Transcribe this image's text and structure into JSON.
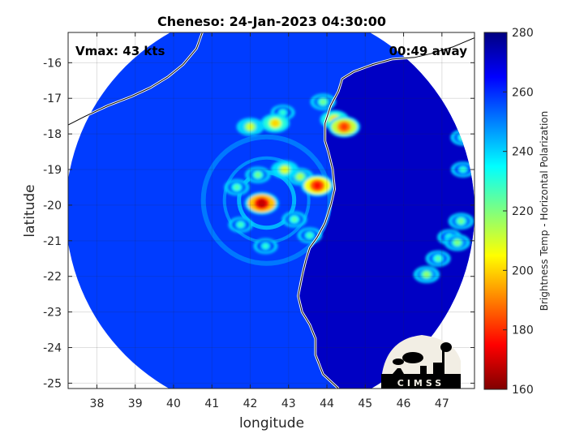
{
  "chart_data": {
    "type": "heatmap",
    "title": "Cheneso: 24-Jan-2023 04:30:00",
    "xlabel": "longitude",
    "ylabel": "latitude",
    "xlim": [
      37.25,
      47.85
    ],
    "ylim": [
      -25.15,
      -15.15
    ],
    "xticks": [
      38,
      39,
      40,
      41,
      42,
      43,
      44,
      45,
      46,
      47
    ],
    "yticks": [
      -16,
      -17,
      -18,
      -19,
      -20,
      -21,
      -22,
      -23,
      -24,
      -25
    ],
    "grid": true,
    "annotations": {
      "vmax": "Vmax: 43 kts",
      "away": "00:49 away"
    },
    "colorbar": {
      "label": "Brightness Temp - Horizontal Polarization",
      "range": [
        160,
        280
      ],
      "ticks": [
        160,
        180,
        200,
        220,
        240,
        260,
        280
      ],
      "colormap": "jet"
    },
    "swath_center": {
      "lon": 42.35,
      "lat": -20.05
    },
    "storm_center": {
      "lon": 42.3,
      "lat": -19.95
    },
    "warm_spots": [
      {
        "lon": 42.3,
        "lat": -19.95,
        "value": 168
      },
      {
        "lon": 43.75,
        "lat": -19.45,
        "value": 176
      },
      {
        "lon": 44.45,
        "lat": -17.8,
        "value": 182
      },
      {
        "lon": 44.2,
        "lat": -17.6,
        "value": 200
      },
      {
        "lon": 42.65,
        "lat": -17.7,
        "value": 200
      },
      {
        "lon": 42.0,
        "lat": -17.8,
        "value": 210
      },
      {
        "lon": 42.9,
        "lat": -19.0,
        "value": 208
      },
      {
        "lon": 43.3,
        "lat": -19.2,
        "value": 215
      },
      {
        "lon": 42.2,
        "lat": -19.15,
        "value": 222
      },
      {
        "lon": 41.65,
        "lat": -19.5,
        "value": 225
      },
      {
        "lon": 41.75,
        "lat": -20.55,
        "value": 228
      },
      {
        "lon": 42.4,
        "lat": -21.15,
        "value": 230
      },
      {
        "lon": 43.15,
        "lat": -20.4,
        "value": 225
      },
      {
        "lon": 43.55,
        "lat": -20.85,
        "value": 228
      },
      {
        "lon": 43.9,
        "lat": -17.1,
        "value": 222
      },
      {
        "lon": 46.6,
        "lat": -21.95,
        "value": 218
      },
      {
        "lon": 47.4,
        "lat": -21.05,
        "value": 220
      },
      {
        "lon": 47.5,
        "lat": -20.45,
        "value": 222
      },
      {
        "lon": 46.9,
        "lat": -21.5,
        "value": 225
      },
      {
        "lon": 47.2,
        "lat": -20.9,
        "value": 228
      },
      {
        "lon": 47.55,
        "lat": -18.1,
        "value": 225
      },
      {
        "lon": 47.55,
        "lat": -19.0,
        "value": 230
      },
      {
        "lon": 42.85,
        "lat": -17.4,
        "value": 230
      }
    ],
    "ocean_background": 258,
    "land_background": 272,
    "madagascar_coast": [
      [
        47.85,
        -15.3
      ],
      [
        47.3,
        -15.55
      ],
      [
        46.7,
        -15.75
      ],
      [
        46.3,
        -15.85
      ],
      [
        45.7,
        -15.9
      ],
      [
        45.2,
        -16.05
      ],
      [
        44.7,
        -16.25
      ],
      [
        44.4,
        -16.45
      ],
      [
        44.3,
        -16.8
      ],
      [
        44.1,
        -17.2
      ],
      [
        43.95,
        -17.7
      ],
      [
        43.95,
        -18.2
      ],
      [
        44.05,
        -18.55
      ],
      [
        44.15,
        -19.0
      ],
      [
        44.2,
        -19.55
      ],
      [
        44.1,
        -20.0
      ],
      [
        43.95,
        -20.5
      ],
      [
        43.75,
        -20.9
      ],
      [
        43.55,
        -21.2
      ],
      [
        43.45,
        -21.55
      ],
      [
        43.35,
        -22.0
      ],
      [
        43.25,
        -22.55
      ],
      [
        43.35,
        -23.0
      ],
      [
        43.55,
        -23.35
      ],
      [
        43.7,
        -23.75
      ],
      [
        43.7,
        -24.2
      ],
      [
        43.9,
        -24.75
      ],
      [
        44.3,
        -25.15
      ]
    ],
    "mozambique_coast": [
      [
        37.25,
        -17.75
      ],
      [
        37.7,
        -17.5
      ],
      [
        38.3,
        -17.2
      ],
      [
        38.9,
        -16.95
      ],
      [
        39.4,
        -16.7
      ],
      [
        39.85,
        -16.4
      ],
      [
        40.25,
        -16.05
      ],
      [
        40.6,
        -15.6
      ],
      [
        40.75,
        -15.15
      ]
    ]
  }
}
